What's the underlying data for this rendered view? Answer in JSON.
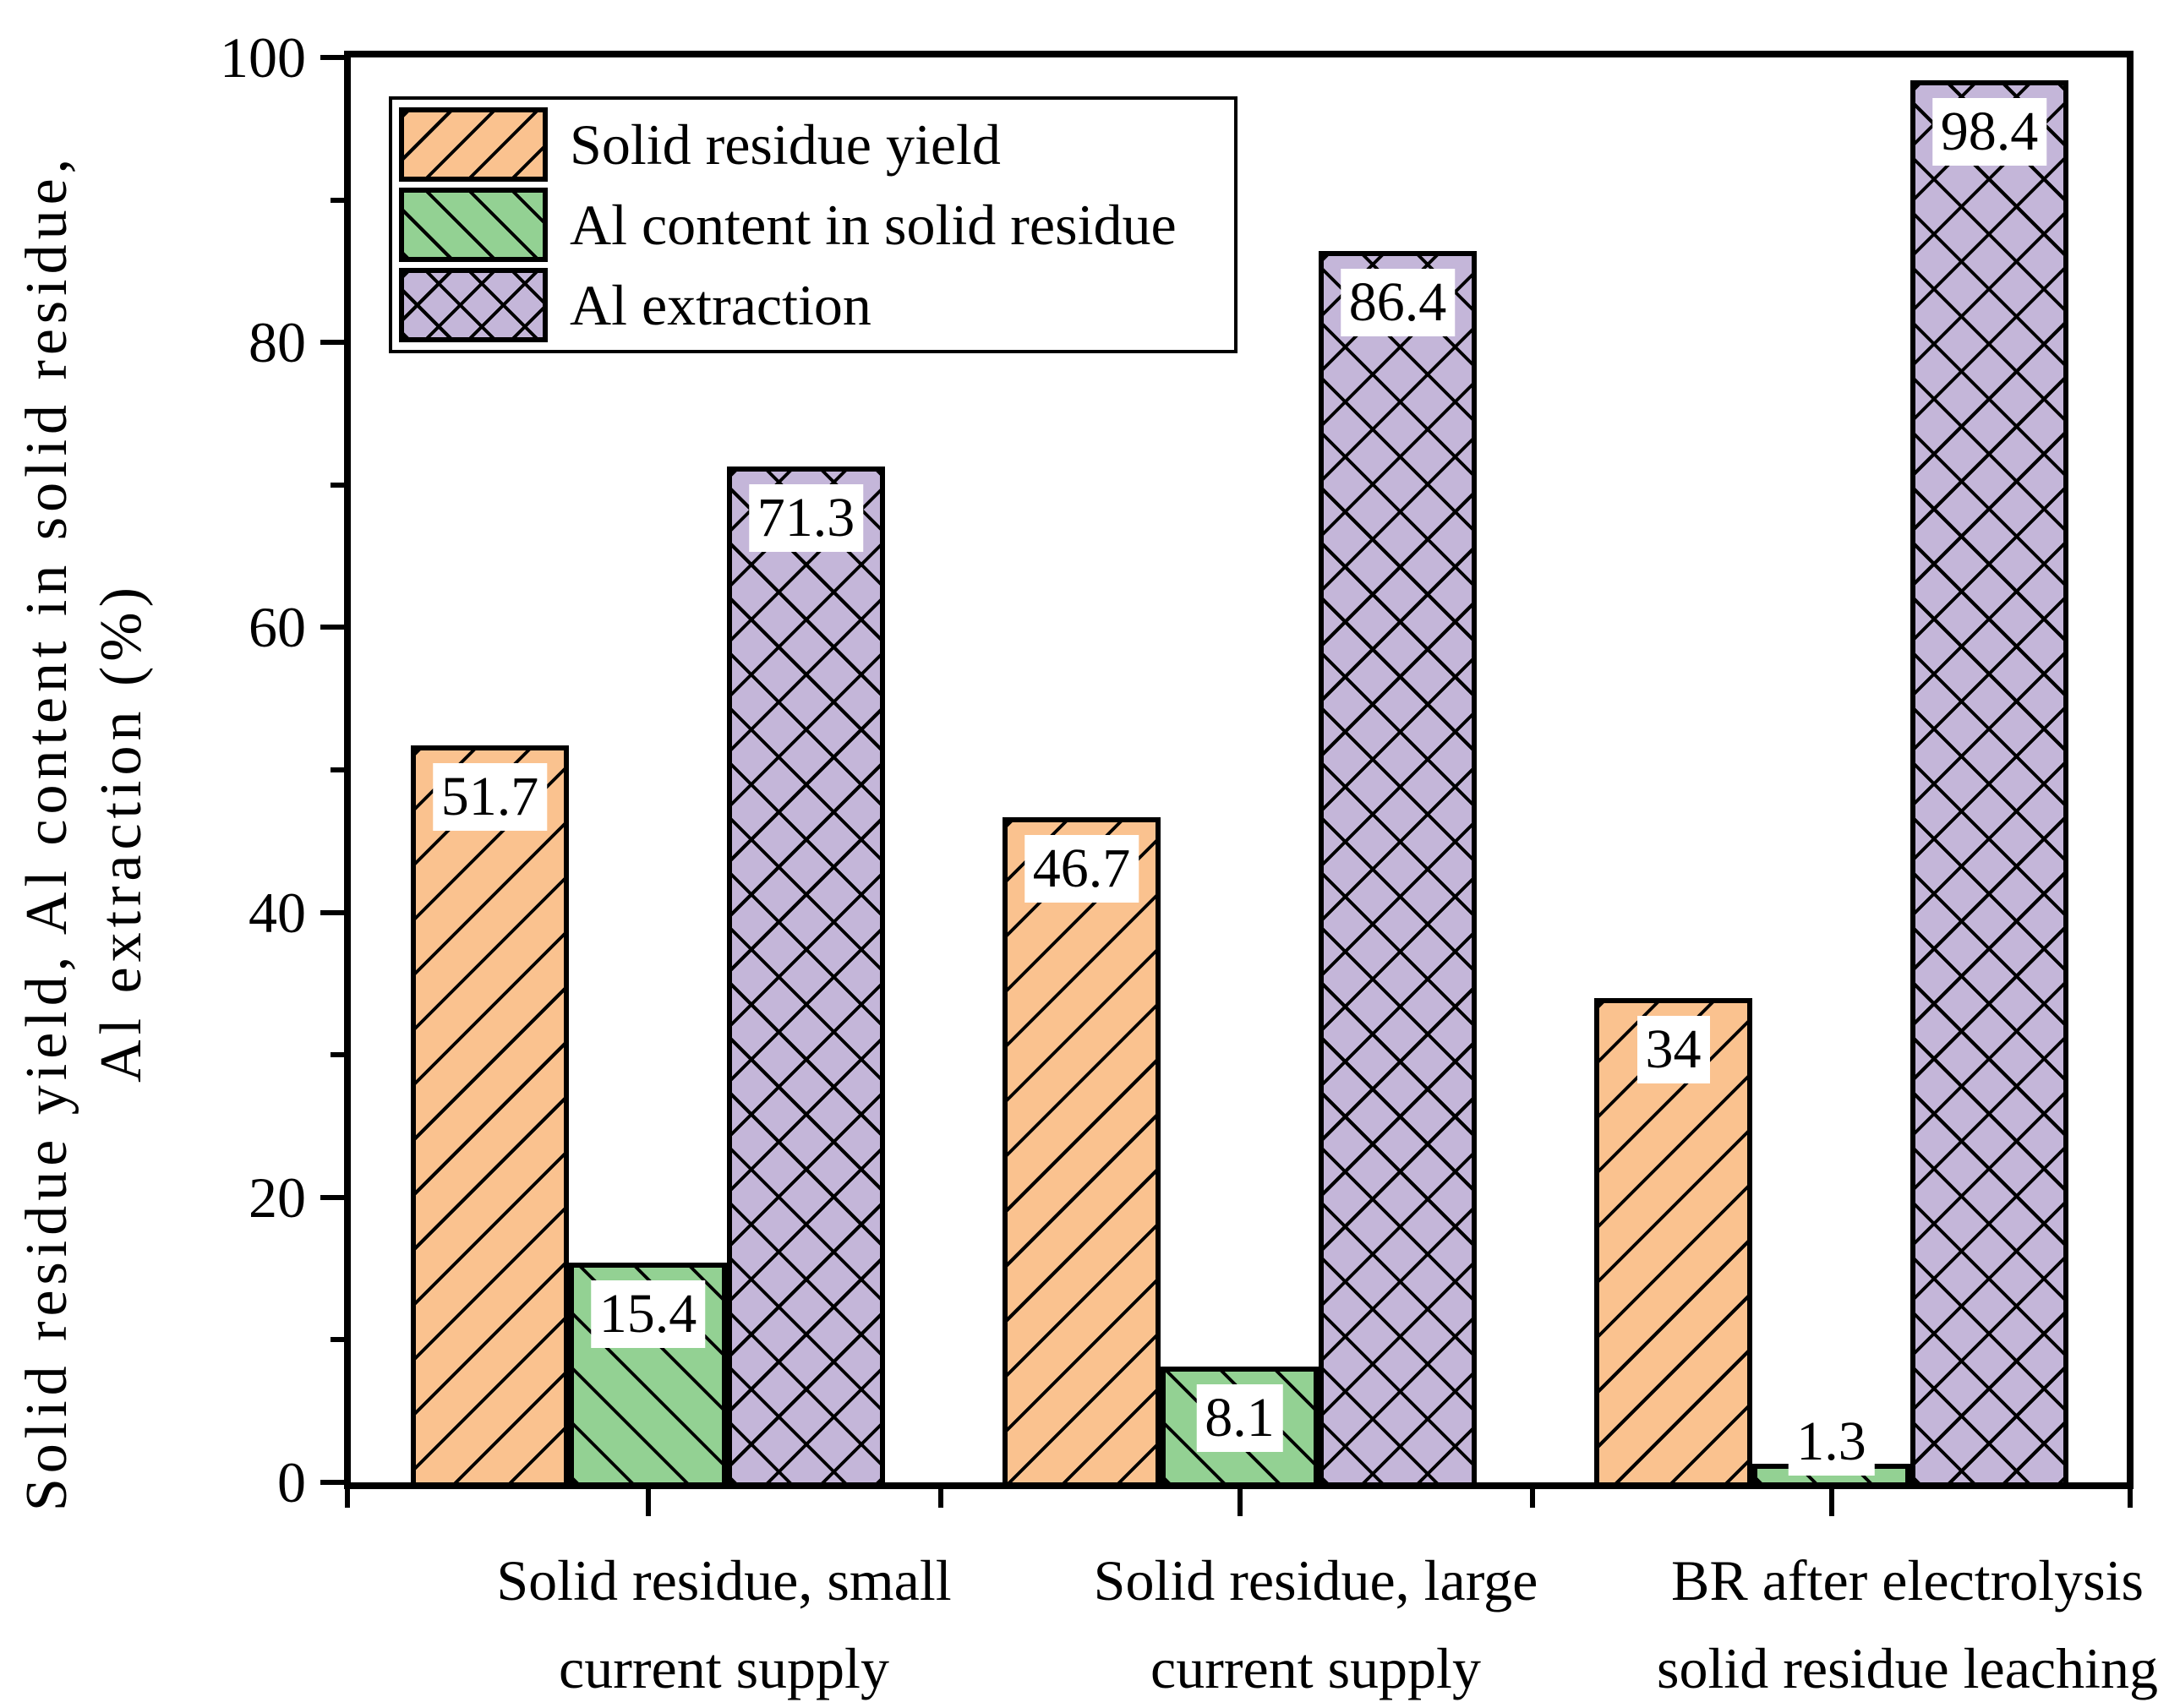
{
  "y_axis": {
    "title_line1": "Solid residue yield, Al content in solid residue,",
    "title_line2": "Al extraction (%)",
    "tick_labels": [
      "0",
      "20",
      "40",
      "60",
      "80",
      "100"
    ],
    "major_ticks": [
      0,
      20,
      40,
      60,
      80,
      100
    ],
    "minor_ticks": [
      10,
      30,
      50,
      70,
      90
    ],
    "range": [
      0,
      100
    ]
  },
  "x_axis": {
    "categories": [
      [
        "Solid residue, small",
        "current supply"
      ],
      [
        "Solid residue, large",
        "current supply"
      ],
      [
        "BR after electrolysis",
        "solid residue leaching"
      ]
    ]
  },
  "legend": {
    "items": [
      {
        "label": "Solid residue yield",
        "color": "#FAC28F",
        "hatch": "/"
      },
      {
        "label": "Al content in solid residue",
        "color": "#93D193",
        "hatch": "\\"
      },
      {
        "label": "Al extraction",
        "color": "#C4B6D9",
        "hatch": "x"
      }
    ]
  },
  "chart_data": {
    "type": "bar",
    "categories": [
      "Solid residue, small current supply",
      "Solid residue, large current supply",
      "BR after electrolysis solid residue leaching"
    ],
    "series": [
      {
        "name": "Solid residue yield",
        "color": "#FAC28F",
        "hatch": "/",
        "values": [
          51.7,
          46.7,
          34
        ]
      },
      {
        "name": "Al content in solid residue",
        "color": "#93D193",
        "hatch": "\\",
        "values": [
          15.4,
          8.1,
          1.3
        ]
      },
      {
        "name": "Al extraction",
        "color": "#C4B6D9",
        "hatch": "x",
        "values": [
          71.3,
          86.4,
          98.4
        ]
      }
    ],
    "value_labels": [
      [
        "51.7",
        "46.7",
        "34"
      ],
      [
        "15.4",
        "8.1",
        "1.3"
      ],
      [
        "71.3",
        "86.4",
        "98.4"
      ]
    ],
    "ylabel": "Solid residue yield, Al content in solid residue, Al extraction (%)",
    "ylim": [
      0,
      100
    ],
    "grid": false,
    "legend_position": "upper-left-inside",
    "bar_edge_color": "#000000"
  }
}
